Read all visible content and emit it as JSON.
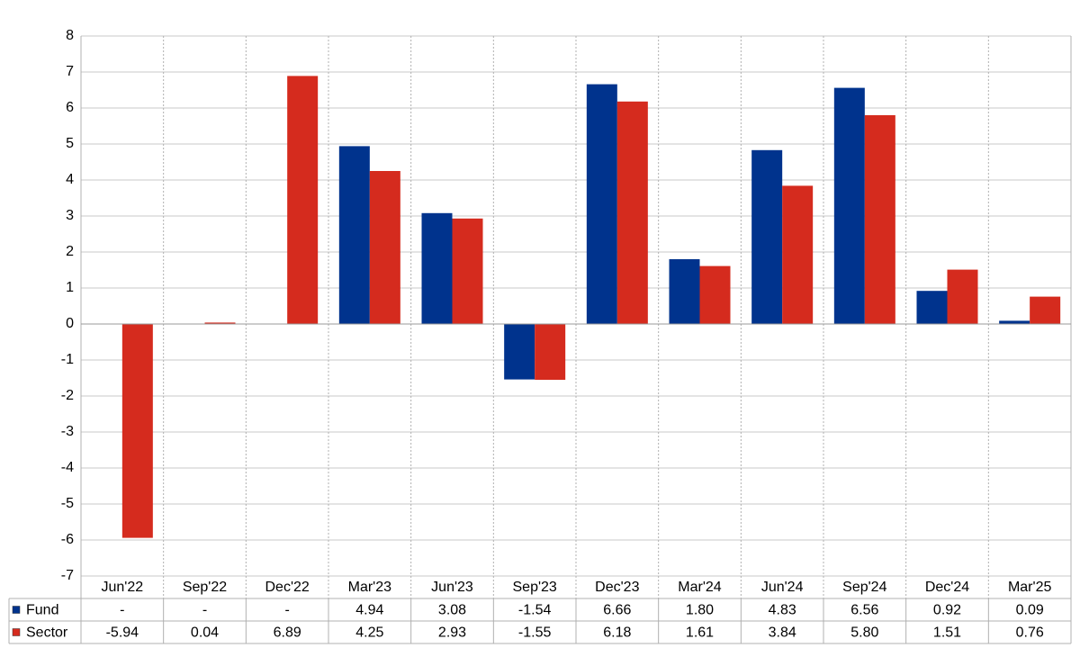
{
  "chart_data": {
    "type": "bar",
    "categories": [
      "Jun'22",
      "Sep'22",
      "Dec'22",
      "Mar'23",
      "Jun'23",
      "Sep'23",
      "Dec'23",
      "Mar'24",
      "Jun'24",
      "Sep'24",
      "Dec'24",
      "Mar'25"
    ],
    "series": [
      {
        "name": "Fund",
        "color": "#00338d",
        "values": [
          null,
          null,
          null,
          4.94,
          3.08,
          -1.54,
          6.66,
          1.8,
          4.83,
          6.56,
          0.92,
          0.09
        ],
        "value_labels": [
          "-",
          "-",
          "-",
          "4.94",
          "3.08",
          "-1.54",
          "6.66",
          "1.80",
          "4.83",
          "6.56",
          "0.92",
          "0.09"
        ]
      },
      {
        "name": "Sector",
        "color": "#d52b1e",
        "values": [
          -5.94,
          0.04,
          6.89,
          4.25,
          2.93,
          -1.55,
          6.18,
          1.61,
          3.84,
          5.8,
          1.51,
          0.76
        ],
        "value_labels": [
          "-5.94",
          "0.04",
          "6.89",
          "4.25",
          "2.93",
          "-1.55",
          "6.18",
          "1.61",
          "3.84",
          "5.80",
          "1.51",
          "0.76"
        ]
      }
    ],
    "ylim": [
      -7,
      8
    ],
    "yticks": [
      -7,
      -6,
      -5,
      -4,
      -3,
      -2,
      -1,
      0,
      1,
      2,
      3,
      4,
      5,
      6,
      7,
      8
    ],
    "grid": true,
    "negative_color": "#ff0000"
  }
}
